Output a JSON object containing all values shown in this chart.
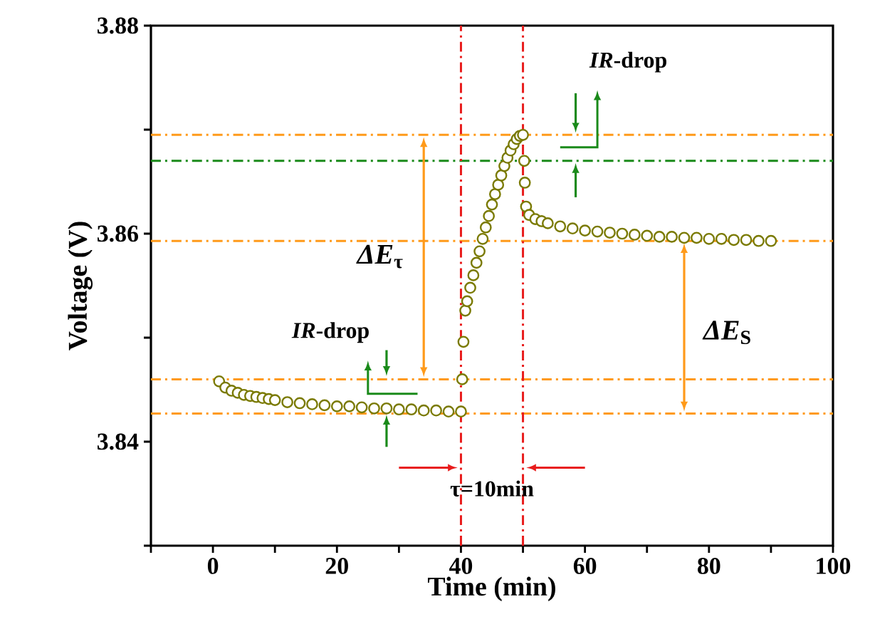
{
  "chart_data": {
    "type": "scatter",
    "xlabel": "Time (min)",
    "ylabel": "Voltage (V)",
    "xlim": [
      -10,
      100
    ],
    "ylim": [
      3.83,
      3.88
    ],
    "xticks": [
      {
        "value": -10,
        "label": null
      },
      0,
      {
        "value": 10,
        "label": null
      },
      20,
      {
        "value": 30,
        "label": null
      },
      40,
      {
        "value": 50,
        "label": null
      },
      60,
      {
        "value": 70,
        "label": null
      },
      80,
      {
        "value": 90,
        "label": null
      },
      100
    ],
    "yticks": [
      {
        "value": 3.83,
        "label": null
      },
      3.84,
      {
        "value": 3.85,
        "label": null
      },
      3.86,
      {
        "value": 3.87,
        "label": null
      },
      3.88
    ],
    "marker": "circle",
    "series": [
      {
        "color": "#7a7a00",
        "x": [
          1,
          2,
          3,
          4,
          5,
          6,
          7,
          8,
          9,
          10,
          12,
          14,
          16,
          18,
          20,
          22,
          24,
          26,
          28,
          30,
          32,
          34,
          36,
          38,
          40,
          40.2,
          40.4,
          40.7,
          41,
          41.5,
          42,
          42.5,
          43,
          43.5,
          44,
          44.5,
          45,
          45.5,
          46,
          46.5,
          47,
          47.5,
          48,
          48.5,
          49,
          49.5,
          50,
          50.2,
          50.3,
          50.5,
          51,
          52,
          53,
          54,
          56,
          58,
          60,
          62,
          64,
          66,
          68,
          70,
          72,
          74,
          76,
          78,
          80,
          82,
          84,
          86,
          88,
          90
        ],
        "values": [
          3.8458,
          3.8452,
          3.8449,
          3.8447,
          3.8445,
          3.8444,
          3.8443,
          3.8442,
          3.8441,
          3.844,
          3.8438,
          3.8437,
          3.8436,
          3.8435,
          3.8434,
          3.8434,
          3.8433,
          3.8432,
          3.8432,
          3.8431,
          3.8431,
          3.843,
          3.843,
          3.8429,
          3.8429,
          3.846,
          3.8496,
          3.8526,
          3.8535,
          3.8548,
          3.856,
          3.8572,
          3.8583,
          3.8595,
          3.8606,
          3.8617,
          3.8628,
          3.8638,
          3.8647,
          3.8656,
          3.8665,
          3.8673,
          3.868,
          3.8686,
          3.8691,
          3.8694,
          3.8695,
          3.867,
          3.8649,
          3.8626,
          3.8618,
          3.8614,
          3.8612,
          3.861,
          3.8607,
          3.8605,
          3.8603,
          3.8602,
          3.8601,
          3.86,
          3.8599,
          3.8598,
          3.8597,
          3.8597,
          3.8596,
          3.8596,
          3.8595,
          3.8595,
          3.8594,
          3.8594,
          3.8593,
          3.8593
        ]
      }
    ],
    "ref_lines": [
      {
        "axis": "y",
        "value": 3.8427,
        "color": "#ff9a1a",
        "line_style": "dashdot"
      },
      {
        "axis": "y",
        "value": 3.846,
        "color": "#ff9a1a",
        "line_style": "dashdot"
      },
      {
        "axis": "y",
        "value": 3.8695,
        "color": "#ff9a1a",
        "line_style": "dashdot"
      },
      {
        "axis": "y",
        "value": 3.8593,
        "color": "#ff9a1a",
        "line_style": "dashdot"
      },
      {
        "axis": "y",
        "value": 3.867,
        "color": "#1a8a1a",
        "line_style": "dashdot"
      },
      {
        "axis": "x",
        "value": 40,
        "color": "#e81c1c",
        "line_style": "dashdot"
      },
      {
        "axis": "x",
        "value": 50,
        "color": "#e81c1c",
        "line_style": "dashdot"
      }
    ],
    "annotations": [
      "*IR*-drop",
      "*IR*-drop",
      "*ΔE*$_{τ}$",
      "*ΔE*$_{S}$",
      "τ=10min"
    ]
  }
}
